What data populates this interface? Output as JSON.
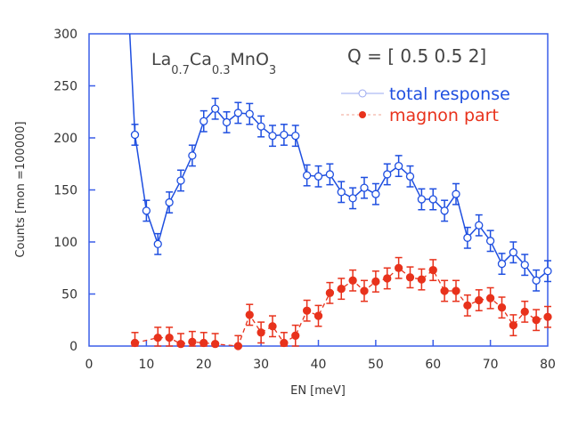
{
  "chart_data": {
    "type": "line",
    "xlabel": "EN [meV]",
    "ylabel": "Counts [mon =100000]",
    "xlim": [
      0,
      80
    ],
    "ylim": [
      0,
      300
    ],
    "xticks": [
      "0",
      "10",
      "20",
      "30",
      "40",
      "50",
      "60",
      "70",
      "80"
    ],
    "yticks": [
      "0",
      "50",
      "100",
      "150",
      "200",
      "250",
      "300"
    ],
    "grid": false,
    "legend_position": "top-right",
    "annotations": {
      "compound": {
        "base": [
          "La",
          "Ca",
          "MnO"
        ],
        "subs": [
          "0.7",
          "0.3",
          "3"
        ]
      },
      "q_vector": "Q = [ 0.5 0.5 2]"
    },
    "series": [
      {
        "name": "total response",
        "color": "#1f4fe0",
        "marker": "open-circle",
        "line": "solid",
        "x": [
          8,
          10,
          12,
          14,
          16,
          18,
          20,
          22,
          24,
          26,
          28,
          30,
          32,
          34,
          36,
          38,
          40,
          42,
          44,
          46,
          48,
          50,
          52,
          54,
          56,
          58,
          60,
          62,
          64,
          66,
          68,
          70,
          72,
          74,
          76,
          78,
          80
        ],
        "y": [
          203,
          130,
          98,
          138,
          159,
          183,
          216,
          228,
          215,
          224,
          223,
          211,
          202,
          203,
          202,
          164,
          163,
          165,
          148,
          142,
          152,
          146,
          165,
          173,
          163,
          141,
          141,
          130,
          146,
          104,
          116,
          101,
          79,
          90,
          78,
          63,
          72
        ],
        "err": 10
      },
      {
        "name": "magnon part",
        "color": "#e8321c",
        "marker": "filled-circle",
        "line": "dashed",
        "x": [
          8,
          12,
          14,
          16,
          18,
          20,
          22,
          26,
          28,
          30,
          32,
          34,
          36,
          38,
          40,
          42,
          44,
          46,
          48,
          50,
          52,
          54,
          56,
          58,
          60,
          62,
          64,
          66,
          68,
          70,
          72,
          74,
          76,
          78,
          80
        ],
        "y": [
          3,
          8,
          8,
          2,
          4,
          3,
          2,
          0,
          30,
          13,
          19,
          3,
          10,
          34,
          29,
          51,
          55,
          63,
          53,
          62,
          65,
          75,
          66,
          64,
          73,
          53,
          53,
          39,
          44,
          46,
          37,
          20,
          33,
          25,
          28
        ],
        "err": 10
      }
    ]
  }
}
